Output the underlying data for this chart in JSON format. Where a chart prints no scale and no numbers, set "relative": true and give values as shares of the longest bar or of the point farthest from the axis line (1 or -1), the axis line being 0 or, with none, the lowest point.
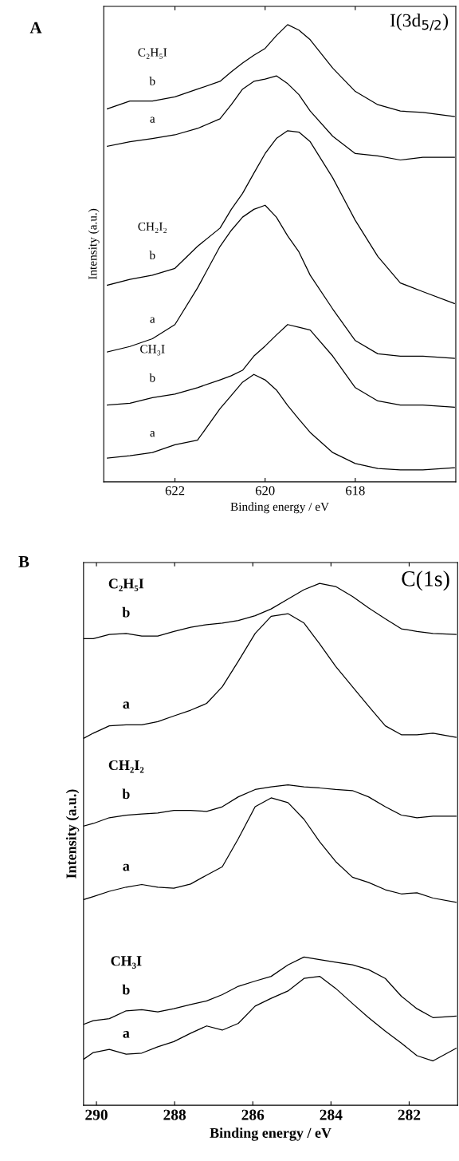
{
  "chart_data": [
    {
      "type": "line",
      "title": "I(3d$_{5/2}$)",
      "xlabel": "Binding energy / eV",
      "ylabel": "Intensity (a.u.)",
      "relative": true,
      "tick_labels": "x",
      "xlim": [
        623.58,
        615.77
      ],
      "xticks": [
        622,
        620,
        618
      ],
      "x": [
        623.5,
        623,
        622.5,
        622,
        621.5,
        621,
        620.75,
        620.5,
        620.25,
        620,
        619.75,
        619.5,
        619.25,
        619,
        618.5,
        618,
        617.5,
        617,
        616.5,
        615.8
      ],
      "annotations": [
        "A",
        "C₂H₅I",
        "CH₂I₂",
        "CH₃I"
      ],
      "series": [
        {
          "name": "b",
          "color": "#000000",
          "values": [
            0.816,
            0.833,
            0.833,
            0.842,
            0.859,
            0.876,
            0.897,
            0.916,
            0.933,
            0.948,
            0.976,
            1.0,
            0.988,
            0.967,
            0.905,
            0.854,
            0.825,
            0.811,
            0.808,
            0.799
          ]
        },
        {
          "name": "a",
          "color": "#000000",
          "values": [
            0.734,
            0.744,
            0.751,
            0.759,
            0.773,
            0.794,
            0.825,
            0.859,
            0.876,
            0.881,
            0.888,
            0.871,
            0.847,
            0.811,
            0.756,
            0.718,
            0.713,
            0.704,
            0.71,
            0.71
          ]
        },
        {
          "name": "b",
          "color": "#000000",
          "values": [
            0.43,
            0.443,
            0.452,
            0.467,
            0.515,
            0.555,
            0.596,
            0.631,
            0.675,
            0.718,
            0.751,
            0.768,
            0.765,
            0.744,
            0.665,
            0.572,
            0.493,
            0.435,
            0.416,
            0.39
          ]
        },
        {
          "name": "a",
          "color": "#000000",
          "values": [
            0.284,
            0.296,
            0.313,
            0.344,
            0.424,
            0.515,
            0.55,
            0.579,
            0.596,
            0.605,
            0.579,
            0.538,
            0.503,
            0.452,
            0.378,
            0.309,
            0.28,
            0.275,
            0.275,
            0.27
          ]
        },
        {
          "name": "b",
          "color": "#000000",
          "values": [
            0.168,
            0.172,
            0.184,
            0.192,
            0.206,
            0.223,
            0.232,
            0.244,
            0.275,
            0.297,
            0.321,
            0.344,
            0.338,
            0.332,
            0.275,
            0.206,
            0.177,
            0.168,
            0.168,
            0.163
          ]
        },
        {
          "name": "a",
          "color": "#000000",
          "values": [
            0.052,
            0.057,
            0.064,
            0.081,
            0.091,
            0.16,
            0.189,
            0.218,
            0.235,
            0.223,
            0.201,
            0.167,
            0.137,
            0.108,
            0.064,
            0.04,
            0.029,
            0.026,
            0.026,
            0.031
          ]
        }
      ]
    },
    {
      "type": "line",
      "title": "C(1s)",
      "xlabel": "Binding energy / eV",
      "ylabel": "Intensity (a.u.)",
      "relative": true,
      "tick_labels": "x",
      "xlim": [
        290.33,
        280.76
      ],
      "xticks": [
        290,
        288,
        286,
        284,
        282
      ],
      "x": [
        290.33,
        290.08,
        289.67,
        289.24,
        288.84,
        288.43,
        288.02,
        287.59,
        287.18,
        286.78,
        286.37,
        285.94,
        285.53,
        285.1,
        284.69,
        284.29,
        283.88,
        283.45,
        283.04,
        282.61,
        282.2,
        281.8,
        281.39,
        280.8
      ],
      "annotations": [
        "B",
        "C₂H₅I",
        "CH₂I₂",
        "CH₃I"
      ],
      "series": [
        {
          "name": "b",
          "color": "#000000",
          "values": [
            0.894,
            0.894,
            0.902,
            0.904,
            0.899,
            0.899,
            0.908,
            0.916,
            0.921,
            0.924,
            0.929,
            0.938,
            0.951,
            0.97,
            0.988,
            1.0,
            0.994,
            0.975,
            0.953,
            0.932,
            0.913,
            0.908,
            0.904,
            0.902
          ]
        },
        {
          "name": "a",
          "color": "#000000",
          "values": [
            0.703,
            0.713,
            0.727,
            0.729,
            0.729,
            0.735,
            0.746,
            0.757,
            0.77,
            0.802,
            0.851,
            0.904,
            0.937,
            0.942,
            0.924,
            0.884,
            0.841,
            0.802,
            0.765,
            0.727,
            0.71,
            0.71,
            0.713,
            0.705
          ]
        },
        {
          "name": "b",
          "color": "#000000",
          "values": [
            0.535,
            0.54,
            0.551,
            0.556,
            0.558,
            0.56,
            0.565,
            0.565,
            0.563,
            0.572,
            0.591,
            0.605,
            0.61,
            0.614,
            0.61,
            0.608,
            0.605,
            0.603,
            0.591,
            0.572,
            0.556,
            0.551,
            0.554,
            0.554
          ]
        },
        {
          "name": "a",
          "color": "#000000",
          "values": [
            0.394,
            0.4,
            0.41,
            0.418,
            0.423,
            0.418,
            0.416,
            0.424,
            0.441,
            0.457,
            0.511,
            0.572,
            0.589,
            0.58,
            0.548,
            0.505,
            0.467,
            0.437,
            0.427,
            0.413,
            0.405,
            0.407,
            0.397,
            0.389
          ]
        },
        {
          "name": "b",
          "color": "#000000",
          "values": [
            0.155,
            0.162,
            0.166,
            0.181,
            0.183,
            0.179,
            0.185,
            0.193,
            0.2,
            0.212,
            0.228,
            0.238,
            0.247,
            0.269,
            0.284,
            0.279,
            0.274,
            0.269,
            0.26,
            0.243,
            0.209,
            0.185,
            0.168,
            0.171
          ]
        },
        {
          "name": "a",
          "color": "#000000",
          "values": [
            0.088,
            0.101,
            0.107,
            0.098,
            0.1,
            0.112,
            0.122,
            0.138,
            0.152,
            0.144,
            0.157,
            0.19,
            0.205,
            0.219,
            0.243,
            0.247,
            0.224,
            0.195,
            0.168,
            0.142,
            0.119,
            0.095,
            0.085,
            0.109
          ]
        }
      ]
    }
  ]
}
